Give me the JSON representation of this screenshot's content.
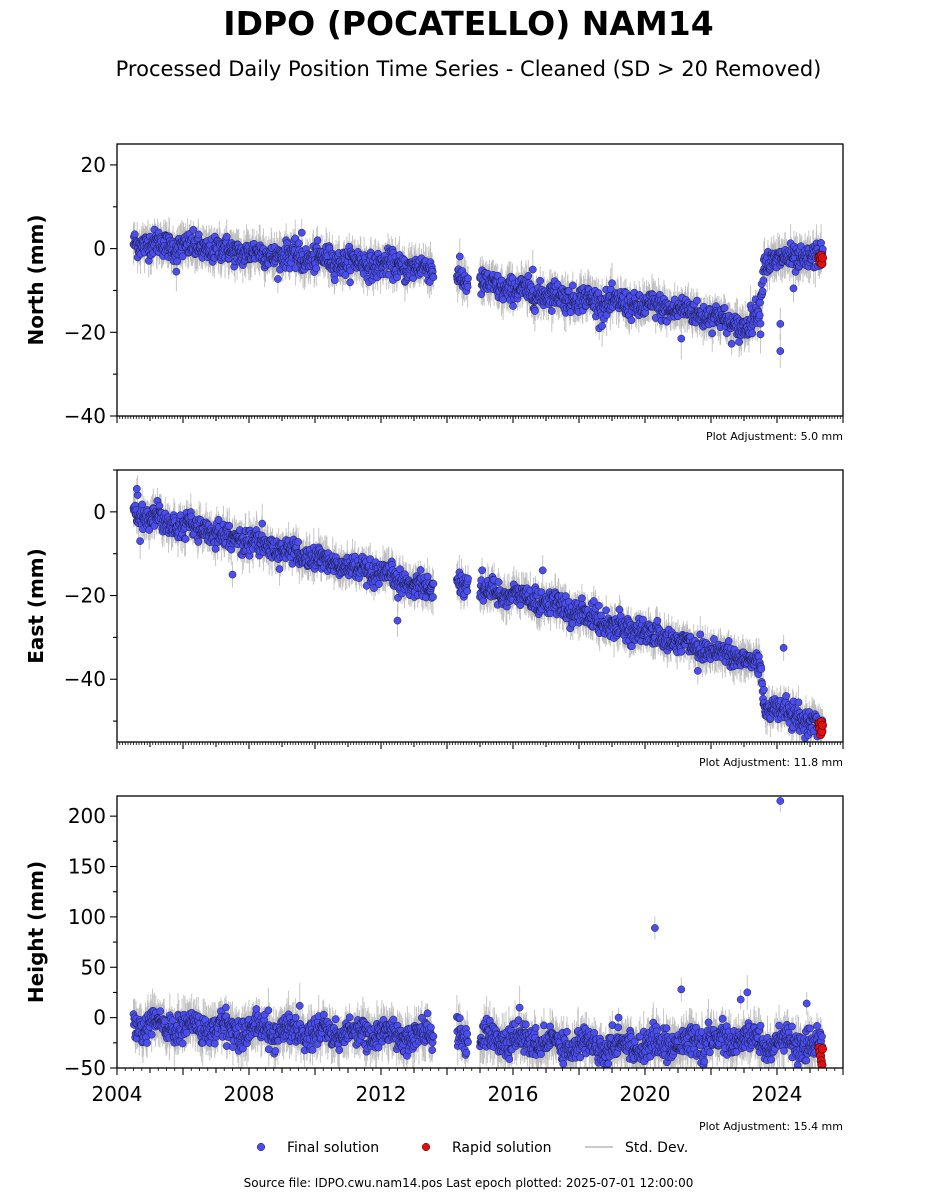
{
  "title": "IDPO (POCATELLO) NAM14",
  "subtitle": "Processed Daily Position Time Series - Cleaned (SD > 20 Removed)",
  "legend": {
    "final": "Final solution",
    "rapid": "Rapid solution",
    "std": "Std. Dev."
  },
  "footer": "Source file: IDPO.cwu.nam14.pos  Last epoch plotted: 2025-07-01 12:00:00",
  "colors": {
    "final": "#4a4ef0",
    "rapid": "#e01010",
    "std": "#b8b8b8",
    "marker_edge": "#1a1a3a"
  },
  "chart_data": [
    {
      "type": "scatter",
      "ylabel": "North (mm)",
      "xlim": [
        2004.0,
        2026.0
      ],
      "ylim": [
        -40,
        25
      ],
      "yticks": [
        "20",
        "0",
        "−20",
        "−40"
      ],
      "annotation": "Plot Adjustment: 5.0 mm",
      "final_trend": [
        [
          2004.5,
          1.5
        ],
        [
          2013.6,
          -5
        ],
        [
          2014.3,
          -7
        ],
        [
          2015.0,
          -8.5
        ],
        [
          2017.0,
          -11
        ],
        [
          2019.0,
          -13
        ],
        [
          2021.0,
          -14.5
        ],
        [
          2022.0,
          -16
        ],
        [
          2022.8,
          -18.5
        ],
        [
          2023.1,
          -19
        ],
        [
          2023.5,
          -14
        ],
        [
          2023.6,
          -3
        ],
        [
          2025.4,
          -2
        ]
      ],
      "final_gaps": [
        [
          2013.6,
          2014.3
        ],
        [
          2014.65,
          2015.0
        ]
      ],
      "scatter_sd": 1.5,
      "outliers": [
        [
          2009.6,
          3.8
        ],
        [
          2021.1,
          -21.5
        ],
        [
          2023.5,
          -20.5
        ],
        [
          2024.1,
          -24.5
        ],
        [
          2024.1,
          -18
        ],
        [
          2024.5,
          -9.5
        ],
        [
          2018.7,
          -18.5
        ],
        [
          2016.6,
          -5
        ],
        [
          2005.8,
          -5.5
        ]
      ],
      "rapid": [
        [
          2025.28,
          -2.0
        ],
        [
          2025.3,
          -3.2
        ],
        [
          2025.32,
          -2.5
        ],
        [
          2025.34,
          -1.6
        ],
        [
          2025.36,
          -3.6
        ],
        [
          2025.38,
          -2.2
        ]
      ]
    },
    {
      "type": "scatter",
      "ylabel": "East (mm)",
      "xlim": [
        2004.0,
        2026.0
      ],
      "ylim": [
        -55,
        10
      ],
      "yticks": [
        "0",
        "−20",
        "−40"
      ],
      "annotation": "Plot Adjustment: 11.8 mm",
      "final_trend": [
        [
          2004.5,
          0
        ],
        [
          2013.6,
          -18.5
        ],
        [
          2014.3,
          -17
        ],
        [
          2015.0,
          -18.5
        ],
        [
          2017.0,
          -21.5
        ],
        [
          2019.0,
          -27
        ],
        [
          2021.0,
          -31
        ],
        [
          2022.0,
          -33
        ],
        [
          2023.5,
          -36.5
        ],
        [
          2023.6,
          -46
        ],
        [
          2025.4,
          -51.5
        ]
      ],
      "final_gaps": [
        [
          2013.6,
          2014.3
        ],
        [
          2014.65,
          2015.0
        ]
      ],
      "scatter_sd": 1.4,
      "outliers": [
        [
          2007.5,
          -15
        ],
        [
          2012.5,
          -26
        ],
        [
          2004.6,
          5.5
        ],
        [
          2004.7,
          -7
        ],
        [
          2016.9,
          -14
        ],
        [
          2023.6,
          -42.5
        ],
        [
          2024.2,
          -32.5
        ],
        [
          2021.6,
          -38
        ]
      ],
      "rapid": [
        [
          2025.28,
          -50.5
        ],
        [
          2025.3,
          -51.8
        ],
        [
          2025.32,
          -53.2
        ],
        [
          2025.34,
          -50.2
        ],
        [
          2025.36,
          -52.5
        ],
        [
          2025.38,
          -51
        ]
      ]
    },
    {
      "type": "scatter",
      "ylabel": "Height (mm)",
      "xlim": [
        2004.0,
        2026.0
      ],
      "ylim": [
        -50,
        220
      ],
      "yticks": [
        "200",
        "150",
        "100",
        "50",
        "0",
        "−50"
      ],
      "xticks": [
        2004,
        2008,
        2012,
        2016,
        2020,
        2024
      ],
      "xticklabels": [
        "2004",
        "2008",
        "2012",
        "2016",
        "2020",
        "2024"
      ],
      "annotation": "Plot Adjustment: 15.4 mm",
      "final_trend": [
        [
          2004.5,
          -8
        ],
        [
          2013.6,
          -18
        ],
        [
          2014.3,
          -20
        ],
        [
          2015.0,
          -20
        ],
        [
          2017.0,
          -25
        ],
        [
          2019.0,
          -28
        ],
        [
          2021.0,
          -25
        ],
        [
          2023.0,
          -22
        ],
        [
          2025.4,
          -30
        ]
      ],
      "final_gaps": [
        [
          2013.6,
          2014.3
        ],
        [
          2014.65,
          2015.0
        ]
      ],
      "scatter_sd": 7,
      "outliers": [
        [
          2024.1,
          215
        ],
        [
          2020.3,
          89
        ],
        [
          2021.1,
          28
        ],
        [
          2022.9,
          18
        ],
        [
          2023.1,
          25
        ],
        [
          2024.9,
          14
        ],
        [
          2016.2,
          10
        ],
        [
          2019.2,
          0
        ]
      ],
      "rapid": [
        [
          2025.28,
          -30
        ],
        [
          2025.3,
          -34
        ],
        [
          2025.32,
          -38
        ],
        [
          2025.34,
          -43
        ],
        [
          2025.36,
          -47
        ],
        [
          2025.38,
          -31
        ]
      ]
    }
  ]
}
